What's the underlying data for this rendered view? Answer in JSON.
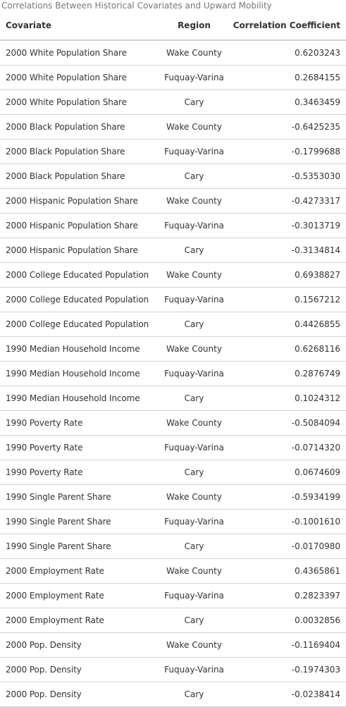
{
  "caption": "Correlations Between Historical Covariates and Upward Mobility",
  "columns": [
    "Covariate",
    "Region",
    "Correlation Coefficient"
  ],
  "rows": [
    [
      "2000 White Population Share",
      "Wake County",
      "0.6203243"
    ],
    [
      "2000 White Population Share",
      "Fuquay-Varina",
      "0.2684155"
    ],
    [
      "2000 White Population Share",
      "Cary",
      "0.3463459"
    ],
    [
      "2000 Black Population Share",
      "Wake County",
      "-0.6425235"
    ],
    [
      "2000 Black Population Share",
      "Fuquay-Varina",
      "-0.1799688"
    ],
    [
      "2000 Black Population Share",
      "Cary",
      "-0.5353030"
    ],
    [
      "2000 Hispanic Population Share",
      "Wake County",
      "-0.4273317"
    ],
    [
      "2000 Hispanic Population Share",
      "Fuquay-Varina",
      "-0.3013719"
    ],
    [
      "2000 Hispanic Population Share",
      "Cary",
      "-0.3134814"
    ],
    [
      "2000 College Educated Population",
      "Wake County",
      "0.6938827"
    ],
    [
      "2000 College Educated Population",
      "Fuquay-Varina",
      "0.1567212"
    ],
    [
      "2000 College Educated Population",
      "Cary",
      "0.4426855"
    ],
    [
      "1990 Median Household Income",
      "Wake County",
      "0.6268116"
    ],
    [
      "1990 Median Household Income",
      "Fuquay-Varina",
      "0.2876749"
    ],
    [
      "1990 Median Household Income",
      "Cary",
      "0.1024312"
    ],
    [
      "1990 Poverty Rate",
      "Wake County",
      "-0.5084094"
    ],
    [
      "1990 Poverty Rate",
      "Fuquay-Varina",
      "-0.0714320"
    ],
    [
      "1990 Poverty Rate",
      "Cary",
      "0.0674609"
    ],
    [
      "1990 Single Parent Share",
      "Wake County",
      "-0.5934199"
    ],
    [
      "1990 Single Parent Share",
      "Fuquay-Varina",
      "-0.1001610"
    ],
    [
      "1990 Single Parent Share",
      "Cary",
      "-0.0170980"
    ],
    [
      "2000 Employment Rate",
      "Wake County",
      "0.4365861"
    ],
    [
      "2000 Employment Rate",
      "Fuquay-Varina",
      "0.2823397"
    ],
    [
      "2000 Employment Rate",
      "Cary",
      "0.0032856"
    ],
    [
      "2000 Pop. Density",
      "Wake County",
      "-0.1169404"
    ],
    [
      "2000 Pop. Density",
      "Fuquay-Varina",
      "-0.1974303"
    ],
    [
      "2000 Pop. Density",
      "Cary",
      "-0.0238414"
    ]
  ]
}
